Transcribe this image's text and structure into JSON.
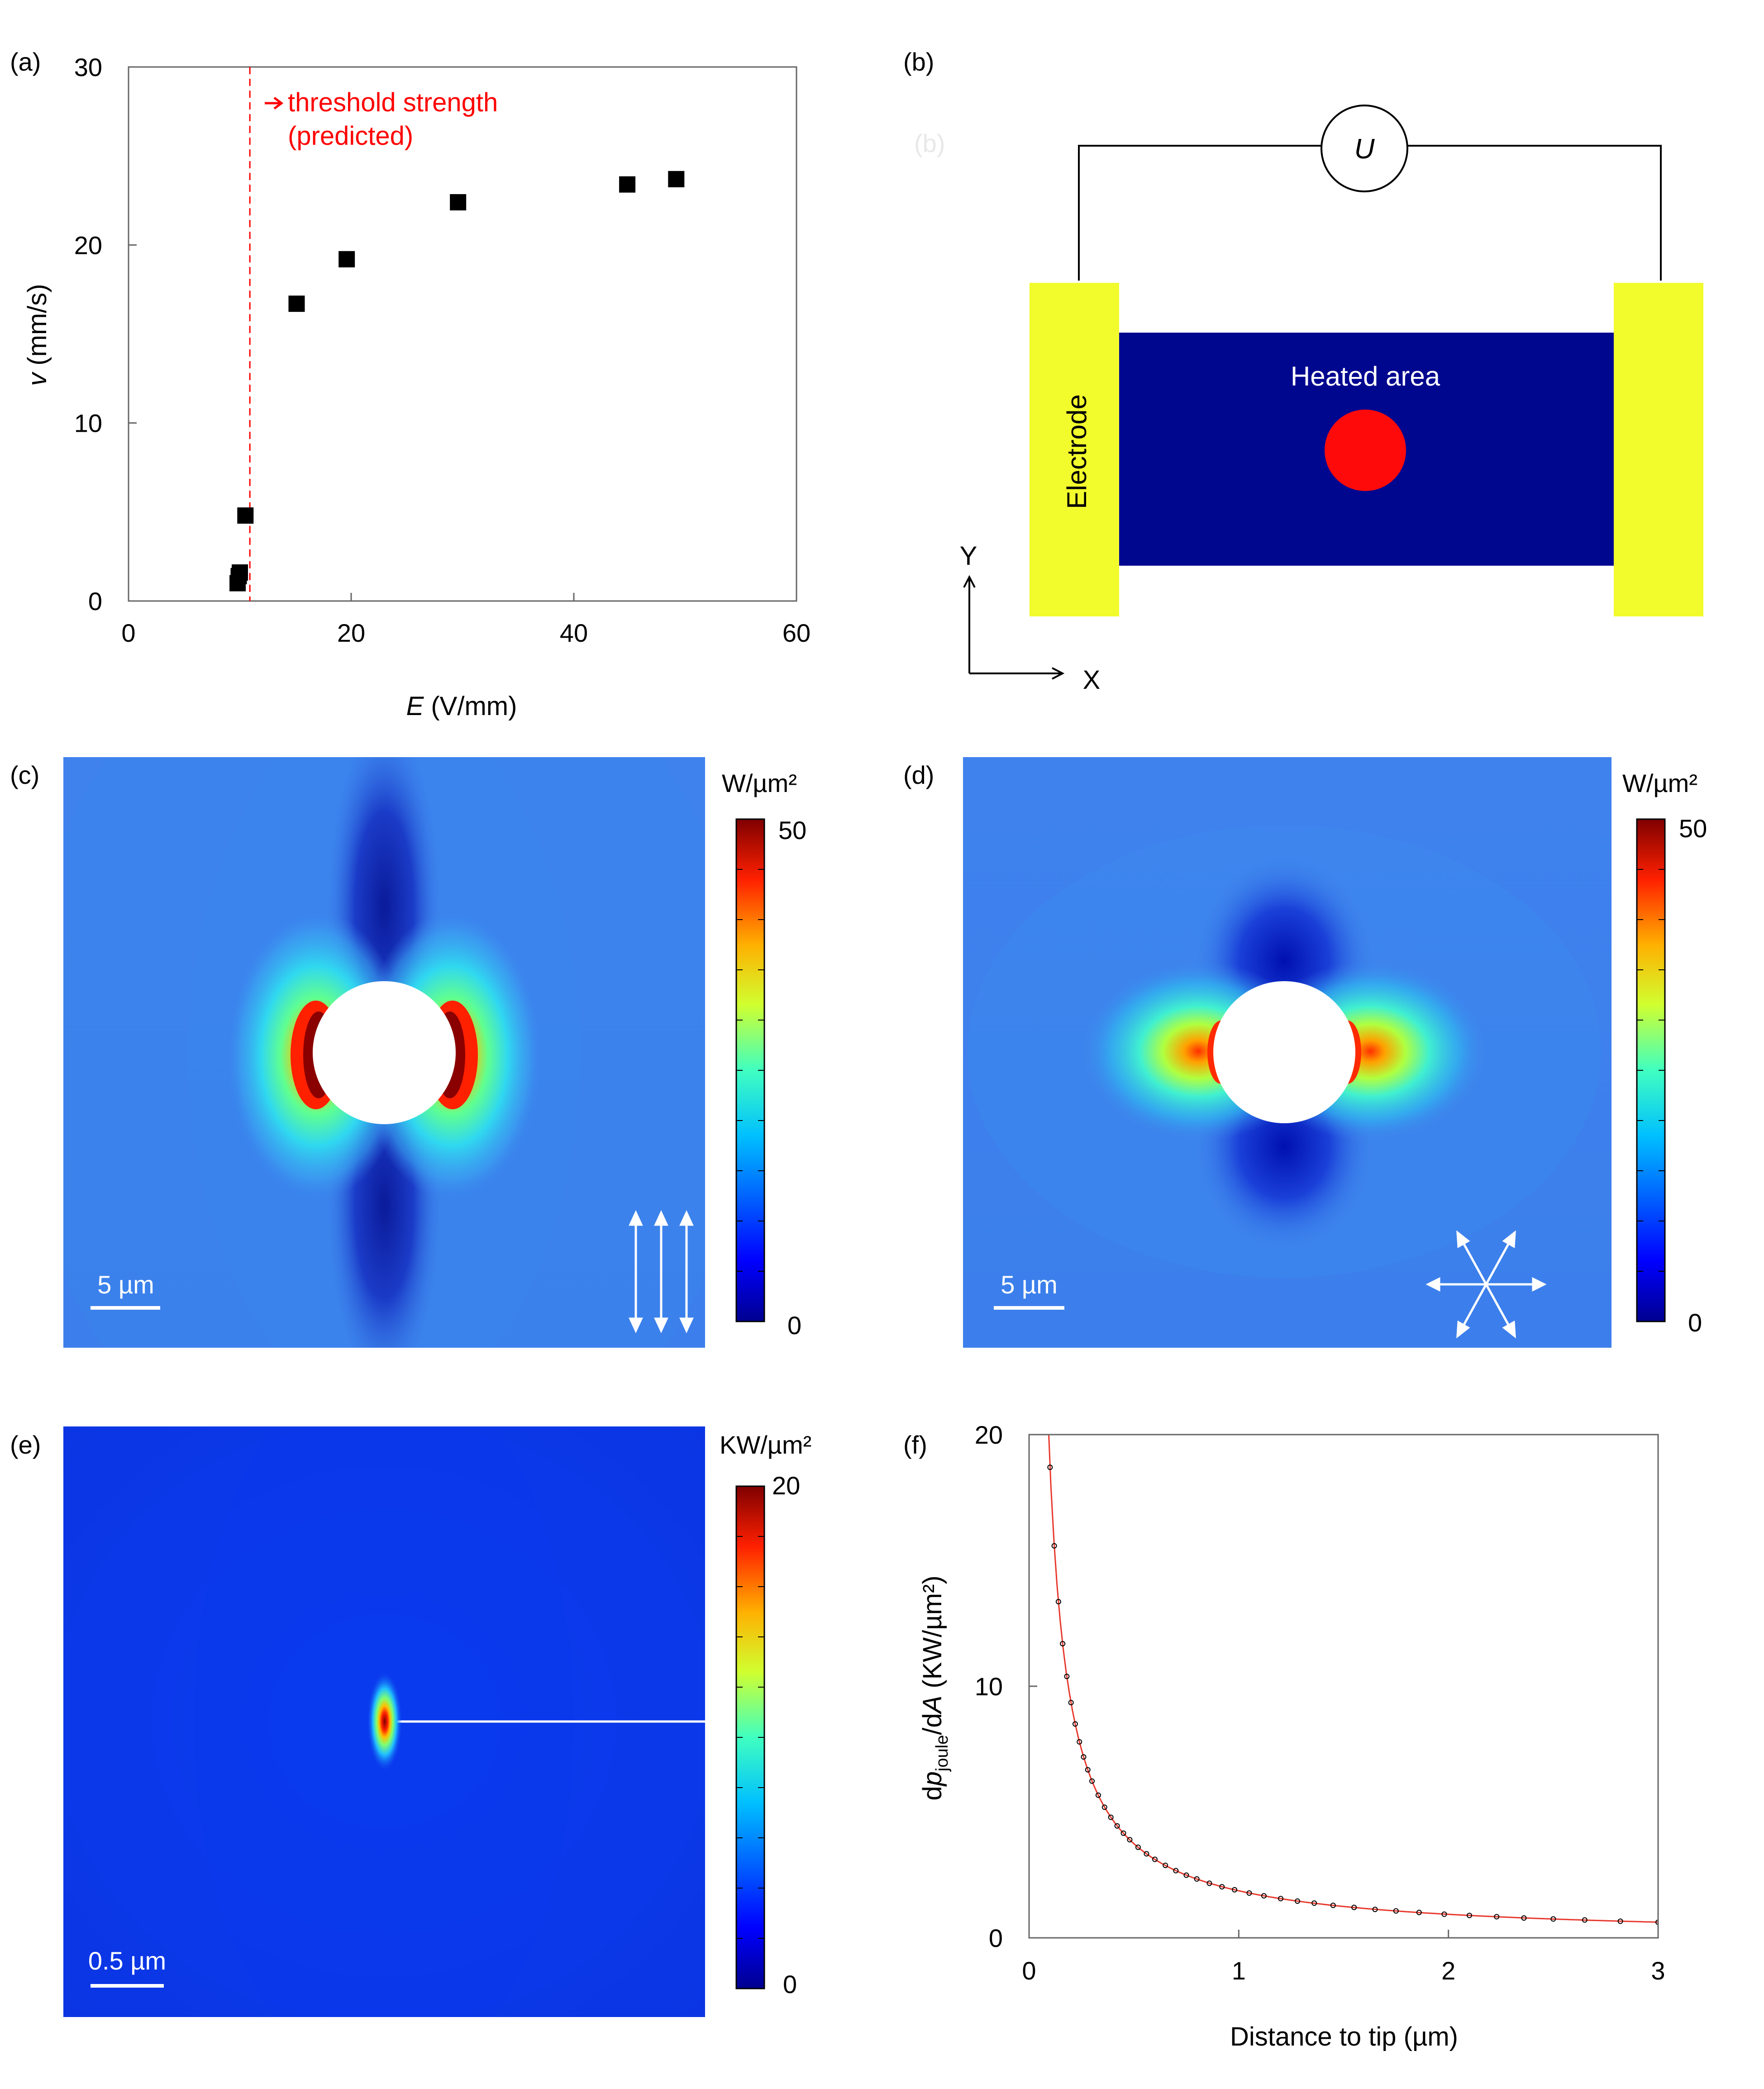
{
  "panels": {
    "a": {
      "label": "(a)",
      "xlabel_var": "E",
      "xlabel_unit": " (V/mm)",
      "ylabel_var": "v",
      "ylabel_unit": " (mm/s)",
      "annotation_line1": "threshold strength",
      "annotation_line2": "(predicted)"
    },
    "b": {
      "label": "(b)",
      "ghost_label": "(b)",
      "voltage_symbol": "U",
      "heated_label": "Heated area",
      "electrode_label": "Electrode",
      "axis_y": "Y",
      "axis_x": "X",
      "colors": {
        "electrode": "#f2fb2c",
        "channel": "#00078f",
        "heat": "#ff0a0a"
      }
    },
    "c": {
      "label": "(c)",
      "unit": "W/µm²",
      "cbar_max": "50",
      "cbar_min": "0",
      "scalebar": "5 µm"
    },
    "d": {
      "label": "(d)",
      "unit": "W/µm²",
      "cbar_max": "50",
      "cbar_min": "0",
      "scalebar": "5 µm"
    },
    "e": {
      "label": "(e)",
      "unit": "KW/µm²",
      "cbar_max": "20",
      "cbar_min": "0",
      "scalebar": "0.5 µm"
    },
    "f": {
      "label": "(f)",
      "xlabel": "Distance to tip (µm)",
      "ylabel_d": "d",
      "ylabel_p": "p",
      "ylabel_sub": "joule",
      "ylabel_slash": "/d",
      "ylabel_A": "A",
      "ylabel_unit": " (KW/µm²)"
    }
  },
  "chart_data": [
    {
      "panel": "a",
      "type": "scatter",
      "x_ticks": [
        "0",
        "20",
        "40",
        "60"
      ],
      "y_ticks": [
        "0",
        "10",
        "20",
        "30"
      ],
      "xlim": [
        0,
        60
      ],
      "ylim": [
        0,
        30
      ],
      "x": [
        9.8,
        9.9,
        10.0,
        10.5,
        15.1,
        19.6,
        29.6,
        44.8,
        49.2
      ],
      "y": [
        1.0,
        1.4,
        1.6,
        4.8,
        16.7,
        19.2,
        22.4,
        23.4,
        23.7
      ],
      "threshold_x": 10.9,
      "threshold_color": "#ff0000",
      "marker_color": "#000000"
    },
    {
      "panel": "f",
      "type": "line",
      "x_ticks": [
        "0",
        "1",
        "2",
        "3"
      ],
      "y_ticks": [
        "0",
        "10",
        "20"
      ],
      "xlim": [
        0,
        3
      ],
      "ylim": [
        0,
        20
      ],
      "fit": "y = 1.87 / x",
      "x": [
        0.1,
        0.12,
        0.14,
        0.16,
        0.18,
        0.2,
        0.22,
        0.24,
        0.26,
        0.28,
        0.3,
        0.33,
        0.36,
        0.39,
        0.42,
        0.45,
        0.48,
        0.52,
        0.56,
        0.6,
        0.65,
        0.7,
        0.75,
        0.8,
        0.86,
        0.92,
        0.98,
        1.05,
        1.12,
        1.2,
        1.28,
        1.36,
        1.45,
        1.55,
        1.65,
        1.75,
        1.86,
        1.98,
        2.1,
        2.23,
        2.36,
        2.5,
        2.65,
        2.82,
        3.0
      ],
      "y": [
        18.7,
        15.58,
        13.36,
        11.69,
        10.39,
        9.35,
        8.5,
        7.79,
        7.19,
        6.68,
        6.23,
        5.67,
        5.19,
        4.79,
        4.45,
        4.16,
        3.9,
        3.6,
        3.34,
        3.12,
        2.88,
        2.67,
        2.49,
        2.34,
        2.17,
        2.03,
        1.91,
        1.78,
        1.67,
        1.56,
        1.46,
        1.38,
        1.29,
        1.21,
        1.13,
        1.07,
        1.01,
        0.94,
        0.89,
        0.84,
        0.79,
        0.75,
        0.71,
        0.66,
        0.62
      ],
      "line_color": "#e8382c",
      "marker_color": "#000000"
    }
  ]
}
